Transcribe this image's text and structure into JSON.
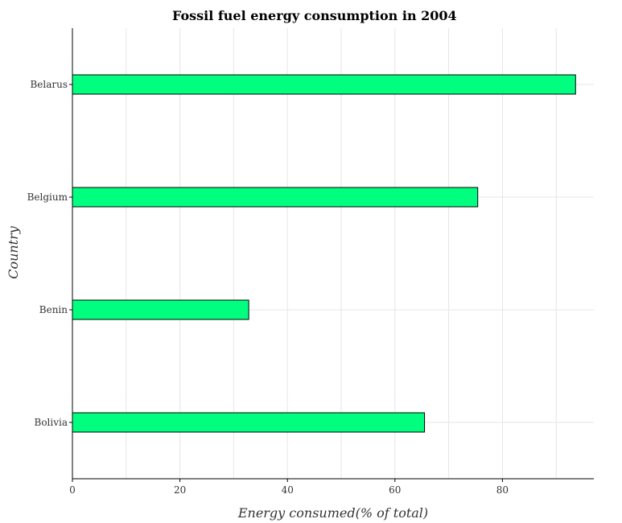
{
  "chart_data": {
    "type": "bar",
    "orientation": "horizontal",
    "title": "Fossil fuel energy consumption in 2004",
    "xlabel": "Energy consumed(% of total)",
    "ylabel": "Country",
    "categories": [
      "Belarus",
      "Belgium",
      "Benin",
      "Bolivia"
    ],
    "values": [
      93.6,
      75.4,
      32.8,
      65.5
    ],
    "xlim": [
      0,
      97
    ],
    "xticks": [
      0,
      20,
      40,
      60,
      80
    ],
    "grid": true,
    "legend": "none",
    "bar_color": "#00ff7f",
    "bar_edge_color": "#000000"
  }
}
